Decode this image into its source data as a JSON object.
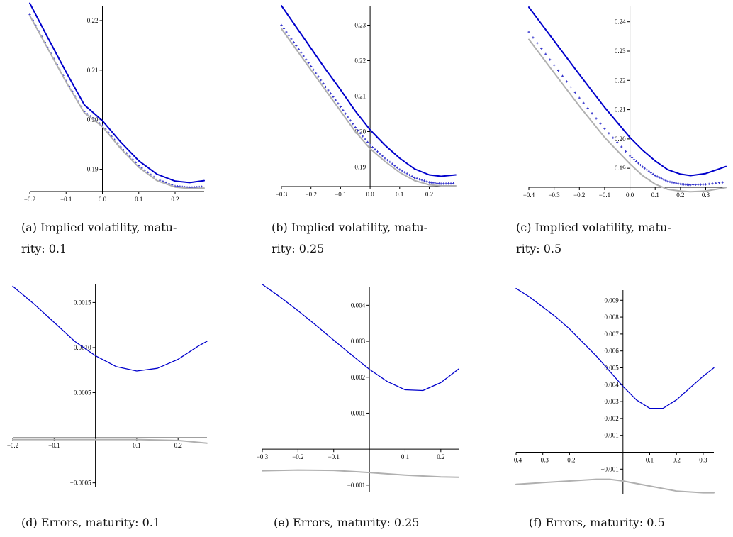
{
  "charts": [
    {
      "id": "a",
      "caption_tag": "(a)",
      "caption_line1": "Implied volatility, matu-",
      "caption_line2": "rity: 0.1",
      "chart_data": {
        "type": "line",
        "xlim": [
          -0.2,
          0.28
        ],
        "ylim": [
          0.1855,
          0.223
        ],
        "x_ticks": [
          -0.2,
          -0.1,
          0.0,
          0.1,
          0.2
        ],
        "x_tick_labels": [
          "−0.2",
          "−0.1",
          "0.0",
          "0.1",
          "0.2"
        ],
        "y_ticks": [
          0.19,
          0.2,
          0.21,
          0.22
        ],
        "y_tick_labels": [
          "0.19",
          "0.20",
          "0.21",
          "0.22"
        ],
        "series": [
          {
            "style": "solid",
            "color": "#0000cc",
            "x": [
              -0.2,
              -0.15,
              -0.1,
              -0.05,
              0.0,
              0.05,
              0.1,
              0.15,
              0.2,
              0.24,
              0.28
            ],
            "y": [
              0.2235,
              0.2165,
              0.2096,
              0.203,
              0.1998,
              0.1955,
              0.1917,
              0.189,
              0.1876,
              0.1873,
              0.1877
            ]
          },
          {
            "style": "plus",
            "color": "#3333cc",
            "x": [
              -0.2,
              -0.15,
              -0.1,
              -0.05,
              0.0,
              0.05,
              0.1,
              0.15,
              0.2,
              0.24,
              0.28
            ],
            "y": [
              0.2212,
              0.2145,
              0.2078,
              0.2016,
              0.1988,
              0.1945,
              0.1907,
              0.188,
              0.1866,
              0.1863,
              0.1865
            ]
          },
          {
            "style": "solid",
            "color": "#b0b0b0",
            "x": [
              -0.2,
              -0.15,
              -0.1,
              -0.05,
              0.0,
              0.05,
              0.1,
              0.15,
              0.2,
              0.24,
              0.28
            ],
            "y": [
              0.221,
              0.2143,
              0.2076,
              0.2014,
              0.1986,
              0.1942,
              0.1904,
              0.1877,
              0.1864,
              0.1861,
              0.1862
            ]
          }
        ]
      }
    },
    {
      "id": "b",
      "caption_tag": "(b)",
      "caption_line1": "Implied volatility, matu-",
      "caption_line2": "rity: 0.25",
      "chart_data": {
        "type": "line",
        "xlim": [
          -0.3,
          0.29
        ],
        "ylim": [
          0.1845,
          0.2355
        ],
        "x_ticks": [
          -0.3,
          -0.2,
          -0.1,
          0.0,
          0.1,
          0.2
        ],
        "x_tick_labels": [
          "−0.3",
          "−0.2",
          "−0.1",
          "0.0",
          "0.1",
          "0.2"
        ],
        "y_ticks": [
          0.19,
          0.2,
          0.21,
          0.22,
          0.23
        ],
        "y_tick_labels": [
          "0.19",
          "0.20",
          "0.21",
          "0.22",
          "0.23"
        ],
        "series": [
          {
            "style": "solid",
            "color": "#0000cc",
            "x": [
              -0.3,
              -0.25,
              -0.2,
              -0.15,
              -0.1,
              -0.05,
              0.0,
              0.05,
              0.1,
              0.15,
              0.2,
              0.24,
              0.29
            ],
            "y": [
              0.2355,
              0.2295,
              0.2235,
              0.2175,
              0.2118,
              0.2058,
              0.2005,
              0.1962,
              0.1925,
              0.1895,
              0.1878,
              0.1874,
              0.1878
            ]
          },
          {
            "style": "plus",
            "color": "#3333cc",
            "x": [
              -0.3,
              -0.25,
              -0.2,
              -0.15,
              -0.1,
              -0.05,
              0.0,
              0.05,
              0.1,
              0.15,
              0.2,
              0.24,
              0.29
            ],
            "y": [
              0.23,
              0.2242,
              0.2184,
              0.2126,
              0.207,
              0.2012,
              0.1962,
              0.1925,
              0.1893,
              0.187,
              0.1857,
              0.1853,
              0.1854
            ]
          },
          {
            "style": "solid",
            "color": "#b0b0b0",
            "x": [
              -0.3,
              -0.25,
              -0.2,
              -0.15,
              -0.1,
              -0.05,
              0.0,
              0.05,
              0.1,
              0.15,
              0.2,
              0.24,
              0.29
            ],
            "y": [
              0.229,
              0.2232,
              0.2174,
              0.2116,
              0.2058,
              0.2,
              0.1952,
              0.1916,
              0.1885,
              0.1862,
              0.185,
              0.1847,
              0.1847
            ]
          }
        ]
      }
    },
    {
      "id": "c",
      "caption_tag": "(c)",
      "caption_line1": "Implied volatility, matu-",
      "caption_line2": "rity: 0.5",
      "chart_data": {
        "type": "line",
        "xlim": [
          -0.4,
          0.38
        ],
        "ylim": [
          0.1835,
          0.2455
        ],
        "x_ticks": [
          -0.4,
          -0.3,
          -0.2,
          -0.1,
          0.0,
          0.1,
          0.2,
          0.3
        ],
        "x_tick_labels": [
          "−0.4",
          "−0.3",
          "−0.2",
          "−0.1",
          "0.0",
          "0.1",
          "0.2",
          "0.3"
        ],
        "y_ticks": [
          0.19,
          0.2,
          0.21,
          0.22,
          0.23,
          0.24
        ],
        "y_tick_labels": [
          "0.19",
          "0.20",
          "0.21",
          "0.22",
          "0.23",
          "0.24"
        ],
        "series": [
          {
            "style": "solid",
            "color": "#0000cc",
            "x": [
              -0.4,
              -0.3,
              -0.2,
              -0.1,
              0.0,
              0.05,
              0.1,
              0.15,
              0.2,
              0.24,
              0.3,
              0.38
            ],
            "y": [
              0.245,
              0.2335,
              0.222,
              0.2108,
              0.2005,
              0.1962,
              0.1925,
              0.1895,
              0.188,
              0.1875,
              0.1882,
              0.1906
            ]
          },
          {
            "style": "plus",
            "color": "#3333cc",
            "x": [
              -0.4,
              -0.3,
              -0.2,
              -0.1,
              0.0,
              0.05,
              0.1,
              0.15,
              0.2,
              0.24,
              0.3,
              0.38
            ],
            "y": [
              0.2365,
              0.2252,
              0.214,
              0.2035,
              0.1942,
              0.1905,
              0.1875,
              0.1855,
              0.1846,
              0.1843,
              0.1845,
              0.1853
            ]
          },
          {
            "style": "solid",
            "color": "#b0b0b0",
            "x": [
              -0.4,
              -0.3,
              -0.2,
              -0.1,
              0.0,
              0.05,
              0.1,
              0.15,
              0.2,
              0.24,
              0.3,
              0.38
            ],
            "y": [
              0.234,
              0.2226,
              0.2112,
              0.2005,
              0.1915,
              0.1875,
              0.1846,
              0.1828,
              0.1822,
              0.182,
              0.1822,
              0.1834
            ]
          }
        ]
      }
    },
    {
      "id": "d",
      "caption_tag": "(d)",
      "caption_line1": "Errors, maturity: 0.1",
      "caption_line2": "",
      "chart_data": {
        "type": "line",
        "xlim": [
          -0.2,
          0.27
        ],
        "ylim": [
          -0.00055,
          0.0017
        ],
        "x_ticks": [
          -0.2,
          -0.1,
          0.1,
          0.2
        ],
        "x_tick_labels": [
          "−0.2",
          "−0.1",
          "0.1",
          "0.2"
        ],
        "y_ticks": [
          -0.0005,
          0.0005,
          0.001,
          0.0015
        ],
        "y_tick_labels": [
          "−0.0005",
          "0.0005",
          "0.0010",
          "0.0015"
        ],
        "series": [
          {
            "style": "solid",
            "color": "#0000cc",
            "x": [
              -0.2,
              -0.15,
              -0.1,
              -0.05,
              0.0,
              0.05,
              0.1,
              0.15,
              0.2,
              0.25,
              0.27
            ],
            "y": [
              0.00168,
              0.00149,
              0.00128,
              0.00107,
              0.00091,
              0.00079,
              0.00074,
              0.00077,
              0.00087,
              0.00102,
              0.00107
            ]
          },
          {
            "style": "solid",
            "color": "#b0b0b0",
            "x": [
              -0.2,
              -0.1,
              0.0,
              0.1,
              0.2,
              0.27
            ],
            "y": [
              -2e-05,
              -2e-05,
              -2e-05,
              -2e-05,
              -3e-05,
              -6e-05
            ]
          }
        ]
      }
    },
    {
      "id": "e",
      "caption_tag": "(e)",
      "caption_line1": "Errors, maturity: 0.25",
      "caption_line2": "",
      "chart_data": {
        "type": "line",
        "xlim": [
          -0.3,
          0.25
        ],
        "ylim": [
          -0.0012,
          0.0045
        ],
        "x_ticks": [
          -0.3,
          -0.2,
          -0.1,
          0.1,
          0.2
        ],
        "x_tick_labels": [
          "−0.3",
          "−0.2",
          "−0.1",
          "0.1",
          "0.2"
        ],
        "y_ticks": [
          -0.001,
          0.001,
          0.002,
          0.003,
          0.004
        ],
        "y_tick_labels": [
          "−0.001",
          "0.001",
          "0.002",
          "0.003",
          "0.004"
        ],
        "series": [
          {
            "style": "solid",
            "color": "#0000cc",
            "x": [
              -0.3,
              -0.25,
              -0.2,
              -0.15,
              -0.1,
              -0.05,
              0.0,
              0.05,
              0.1,
              0.15,
              0.2,
              0.25
            ],
            "y": [
              0.00458,
              0.00423,
              0.00385,
              0.00345,
              0.00303,
              0.00262,
              0.00222,
              0.00188,
              0.00165,
              0.00163,
              0.00185,
              0.00223
            ]
          },
          {
            "style": "solid",
            "color": "#b0b0b0",
            "x": [
              -0.3,
              -0.2,
              -0.1,
              0.0,
              0.1,
              0.2,
              0.25
            ],
            "y": [
              -0.0006,
              -0.00058,
              -0.00059,
              -0.00065,
              -0.00072,
              -0.00077,
              -0.00078
            ]
          }
        ]
      }
    },
    {
      "id": "f",
      "caption_tag": "(f)",
      "caption_line1": "Errors, maturity: 0.5",
      "caption_line2": "",
      "chart_data": {
        "type": "line",
        "xlim": [
          -0.4,
          0.34
        ],
        "ylim": [
          -0.0025,
          0.0096
        ],
        "x_ticks": [
          -0.4,
          -0.3,
          -0.2,
          0.1,
          0.2,
          0.3
        ],
        "x_tick_labels": [
          "−0.4",
          "−0.3",
          "−0.2",
          "0.1",
          "0.2",
          "0.3"
        ],
        "y_ticks": [
          -0.001,
          0.001,
          0.002,
          0.003,
          0.004,
          0.005,
          0.006,
          0.007,
          0.008,
          0.009
        ],
        "y_tick_labels": [
          "−0.001",
          "0.001",
          "0.002",
          "0.003",
          "0.004",
          "0.005",
          "0.006",
          "0.007",
          "0.008",
          "0.009"
        ],
        "series": [
          {
            "style": "solid",
            "color": "#0000cc",
            "x": [
              -0.4,
              -0.35,
              -0.3,
              -0.25,
              -0.2,
              -0.15,
              -0.1,
              -0.05,
              0.0,
              0.05,
              0.1,
              0.15,
              0.2,
              0.25,
              0.3,
              0.34
            ],
            "y": [
              0.0097,
              0.0092,
              0.0086,
              0.008,
              0.0073,
              0.0065,
              0.0057,
              0.0048,
              0.0039,
              0.0031,
              0.0026,
              0.0026,
              0.0031,
              0.0038,
              0.0045,
              0.005
            ]
          },
          {
            "style": "solid",
            "color": "#b0b0b0",
            "x": [
              -0.4,
              -0.3,
              -0.2,
              -0.1,
              -0.05,
              0.0,
              0.1,
              0.2,
              0.3,
              0.34
            ],
            "y": [
              -0.0019,
              -0.0018,
              -0.0017,
              -0.0016,
              -0.0016,
              -0.0017,
              -0.002,
              -0.0023,
              -0.0024,
              -0.0024
            ]
          }
        ]
      }
    }
  ]
}
